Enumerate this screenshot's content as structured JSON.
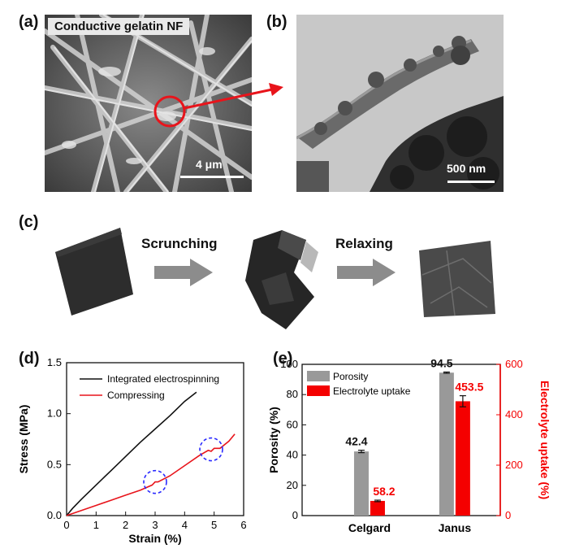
{
  "panels": {
    "a": {
      "letter": "(a)",
      "title": "Conductive gelatin NF",
      "scale": "4 μm"
    },
    "b": {
      "letter": "(b)",
      "scale": "500 nm"
    },
    "c": {
      "letter": "(c)",
      "step1": "Scrunching",
      "step2": "Relaxing"
    },
    "d": {
      "letter": "(d)"
    },
    "e": {
      "letter": "(e)"
    }
  },
  "colors": {
    "black_series": "#111111",
    "red_series": "#e8141b",
    "grey_bar": "#999999",
    "red_bar": "#f40000",
    "highlight_circle": "#2a2aff"
  },
  "chart_data": [
    {
      "type": "line",
      "panel": "d",
      "xlabel": "Strain (%)",
      "ylabel": "Stress (MPa)",
      "xlim": [
        0,
        6
      ],
      "ylim": [
        0,
        1.5
      ],
      "xticks": [
        0,
        1,
        2,
        3,
        4,
        5,
        6
      ],
      "yticks": [
        0.0,
        0.5,
        1.0,
        1.5
      ],
      "xtick_labels": [
        "0",
        "1",
        "2",
        "3",
        "4",
        "5",
        "6"
      ],
      "ytick_labels": [
        "0.0",
        "0.5",
        "1.0",
        "1.5"
      ],
      "legend_position": "top-right",
      "series": [
        {
          "name": "Integrated electrospinning",
          "color": "#111111",
          "x": [
            0,
            0.2,
            0.5,
            1.0,
            1.5,
            2.0,
            2.5,
            3.0,
            3.5,
            4.0,
            4.4
          ],
          "y": [
            0,
            0.07,
            0.16,
            0.3,
            0.44,
            0.58,
            0.72,
            0.85,
            0.98,
            1.12,
            1.21
          ]
        },
        {
          "name": "Compressing",
          "color": "#e8141b",
          "x": [
            0,
            0.3,
            0.7,
            1.0,
            1.5,
            2.0,
            2.5,
            2.9,
            3.0,
            3.1,
            3.5,
            4.0,
            4.5,
            4.8,
            4.9,
            5.0,
            5.2,
            5.5,
            5.7
          ],
          "y": [
            0,
            0.03,
            0.07,
            0.1,
            0.15,
            0.2,
            0.25,
            0.3,
            0.33,
            0.33,
            0.39,
            0.49,
            0.59,
            0.64,
            0.63,
            0.66,
            0.66,
            0.73,
            0.8
          ]
        }
      ],
      "annotations": [
        {
          "shape": "dashed-circle",
          "x": 3.0,
          "y": 0.33
        },
        {
          "shape": "dashed-circle",
          "x": 4.9,
          "y": 0.65
        }
      ]
    },
    {
      "type": "bar",
      "panel": "e",
      "categories": [
        "Celgard",
        "Janus"
      ],
      "ylabel": "Porosity (%)",
      "y2label": "Electrolyte uptake (%)",
      "ylim": [
        0,
        100
      ],
      "y2lim": [
        0,
        600
      ],
      "yticks": [
        0,
        20,
        40,
        60,
        80,
        100
      ],
      "y2ticks": [
        0,
        200,
        400,
        600
      ],
      "legend_position": "top-left",
      "series": [
        {
          "name": "Porosity",
          "axis": "left",
          "color": "#999999",
          "values": [
            42.4,
            94.5
          ],
          "errors": [
            0.8,
            0.4
          ],
          "value_labels": [
            "42.4",
            "94.5"
          ]
        },
        {
          "name": "Electrolyte uptake",
          "axis": "right",
          "color": "#f40000",
          "values": [
            58.2,
            453.5
          ],
          "errors": [
            3,
            22
          ],
          "value_labels": [
            "58.2",
            "453.5"
          ]
        }
      ]
    }
  ]
}
